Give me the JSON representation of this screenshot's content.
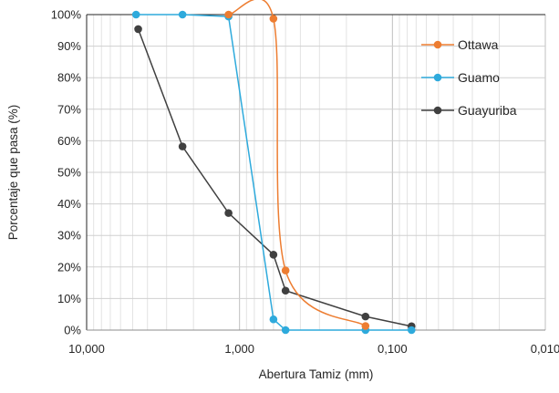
{
  "chart_data": {
    "type": "line",
    "title": "",
    "xlabel": "Abertura Tamiz (mm)",
    "ylabel": "Porcentaje que pasa (%)",
    "x_scale": "log",
    "x_reversed": true,
    "xlim": [
      10,
      0.01
    ],
    "ylim": [
      0,
      100
    ],
    "x_ticks": [
      10,
      1,
      0.1,
      0.01
    ],
    "x_tick_labels": [
      "10,000",
      "1,000",
      "0,100",
      "0,010"
    ],
    "y_ticks": [
      0,
      10,
      20,
      30,
      40,
      50,
      60,
      70,
      80,
      90,
      100
    ],
    "y_tick_labels": [
      "0%",
      "10%",
      "20%",
      "30%",
      "40%",
      "50%",
      "60%",
      "70%",
      "80%",
      "90%",
      "100%"
    ],
    "grid": "major and minor vertical, major horizontal",
    "legend_position": "right",
    "series": [
      {
        "name": "Ottawa",
        "color": "#ED7D31",
        "smooth": true,
        "x": [
          1.18,
          0.6,
          0.5,
          0.15
        ],
        "y": [
          100,
          98.7,
          18.9,
          1.3
        ]
      },
      {
        "name": "Guamo",
        "color": "#2EAADC",
        "smooth": false,
        "x": [
          4.75,
          2.36,
          1.18,
          0.6,
          0.5,
          0.15,
          0.075
        ],
        "y": [
          100,
          100,
          99.4,
          3.4,
          0,
          0,
          0
        ]
      },
      {
        "name": "Guayuriba",
        "color": "#404040",
        "smooth": false,
        "x": [
          4.6,
          2.36,
          1.18,
          0.6,
          0.5,
          0.15,
          0.075
        ],
        "y": [
          95.4,
          58.2,
          37.1,
          23.9,
          12.5,
          4.3,
          1.2
        ]
      }
    ]
  }
}
